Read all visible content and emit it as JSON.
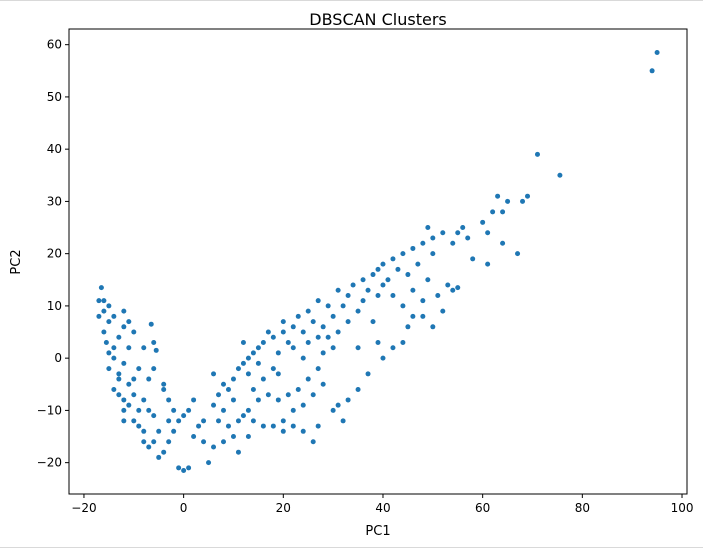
{
  "chart_data": {
    "type": "scatter",
    "title": "DBSCAN Clusters",
    "xlabel": "PC1",
    "ylabel": "PC2",
    "xlim": [
      -23,
      101
    ],
    "ylim": [
      -26,
      63
    ],
    "xticks": [
      -20,
      0,
      20,
      40,
      60,
      80,
      100
    ],
    "yticks": [
      -20,
      -10,
      0,
      10,
      20,
      30,
      40,
      50,
      60
    ],
    "marker_color": "#1f77b4",
    "grid": false,
    "legend": "none",
    "points": [
      [
        -17,
        11
      ],
      [
        -16.5,
        13.5
      ],
      [
        -17,
        8
      ],
      [
        -16,
        9
      ],
      [
        -15,
        7
      ],
      [
        -16,
        5
      ],
      [
        -15.5,
        3
      ],
      [
        -15,
        1
      ],
      [
        -14,
        0
      ],
      [
        -15,
        -2
      ],
      [
        -13,
        -4
      ],
      [
        -14,
        -6
      ],
      [
        -12,
        -8
      ],
      [
        -11,
        -9
      ],
      [
        -12,
        -10
      ],
      [
        -10,
        -12
      ],
      [
        -9,
        -13
      ],
      [
        -8,
        -14
      ],
      [
        -11,
        -5
      ],
      [
        -13,
        -3
      ],
      [
        -12,
        -1
      ],
      [
        -14,
        2
      ],
      [
        -13,
        4
      ],
      [
        -12,
        6
      ],
      [
        -14,
        8
      ],
      [
        -15,
        10
      ],
      [
        -16,
        11
      ],
      [
        -12,
        9
      ],
      [
        -13,
        -7
      ],
      [
        -10,
        -7
      ],
      [
        -8,
        -8
      ],
      [
        -7,
        -10
      ],
      [
        -6,
        -11
      ],
      [
        -9,
        -10
      ],
      [
        -5,
        -14
      ],
      [
        -6,
        -16
      ],
      [
        -7,
        -17
      ],
      [
        -4,
        -18
      ],
      [
        -3,
        -16
      ],
      [
        -5,
        -19
      ],
      [
        -1,
        -21
      ],
      [
        0,
        -21.5
      ],
      [
        1,
        -21
      ],
      [
        -6.5,
        6.5
      ],
      [
        -6,
        3
      ],
      [
        -5.5,
        1.5
      ],
      [
        -4,
        -6
      ],
      [
        -3,
        -8
      ],
      [
        -2,
        -10
      ],
      [
        -7,
        -4
      ],
      [
        -10,
        -4
      ],
      [
        -11,
        2
      ],
      [
        -9,
        -2
      ],
      [
        -12,
        -12
      ],
      [
        -8,
        -16
      ],
      [
        -2,
        -14
      ],
      [
        -1,
        -12
      ],
      [
        0,
        -11
      ],
      [
        1,
        -10
      ],
      [
        2,
        -8
      ],
      [
        3,
        -13
      ],
      [
        2,
        -15
      ],
      [
        4,
        -16
      ],
      [
        5,
        -20
      ],
      [
        4,
        -12
      ],
      [
        6,
        -9
      ],
      [
        7,
        -7
      ],
      [
        8,
        -5
      ],
      [
        6,
        -3
      ],
      [
        9,
        -6
      ],
      [
        10,
        -4
      ],
      [
        10,
        -8
      ],
      [
        8,
        -10
      ],
      [
        7,
        -12
      ],
      [
        12,
        -11
      ],
      [
        11,
        -2
      ],
      [
        12,
        -1
      ],
      [
        13,
        0
      ],
      [
        14,
        1
      ],
      [
        12,
        3
      ],
      [
        13,
        -3
      ],
      [
        15,
        -1
      ],
      [
        15,
        2
      ],
      [
        16,
        3
      ],
      [
        17,
        5
      ],
      [
        16,
        -4
      ],
      [
        14,
        -6
      ],
      [
        18,
        -2
      ],
      [
        18,
        4
      ],
      [
        19,
        1
      ],
      [
        19,
        -3
      ],
      [
        20,
        5
      ],
      [
        21,
        3
      ],
      [
        22,
        6
      ],
      [
        20,
        7
      ],
      [
        22,
        2
      ],
      [
        23,
        8
      ],
      [
        24,
        5
      ],
      [
        24,
        0
      ],
      [
        25,
        9
      ],
      [
        26,
        7
      ],
      [
        25,
        3
      ],
      [
        27,
        11
      ],
      [
        27,
        4
      ],
      [
        28,
        6
      ],
      [
        29,
        10
      ],
      [
        30,
        8
      ],
      [
        29,
        4
      ],
      [
        30,
        2
      ],
      [
        28,
        -5
      ],
      [
        26,
        -7
      ],
      [
        24,
        -9
      ],
      [
        22,
        -10
      ],
      [
        20,
        -12
      ],
      [
        18,
        -13
      ],
      [
        16,
        -13
      ],
      [
        14,
        -12
      ],
      [
        10,
        -15
      ],
      [
        8,
        -16
      ],
      [
        6,
        -17
      ],
      [
        9,
        -13
      ],
      [
        11,
        -12
      ],
      [
        13,
        -10
      ],
      [
        15,
        -8
      ],
      [
        17,
        -7
      ],
      [
        19,
        -8
      ],
      [
        21,
        -7
      ],
      [
        23,
        -6
      ],
      [
        25,
        -4
      ],
      [
        27,
        -2
      ],
      [
        28,
        1
      ],
      [
        31,
        13
      ],
      [
        31,
        5
      ],
      [
        32,
        10
      ],
      [
        33,
        12
      ],
      [
        33,
        7
      ],
      [
        34,
        14
      ],
      [
        35,
        9
      ],
      [
        35,
        2
      ],
      [
        36,
        15
      ],
      [
        36,
        11
      ],
      [
        37,
        13
      ],
      [
        38,
        16
      ],
      [
        38,
        7
      ],
      [
        39,
        17
      ],
      [
        39,
        12
      ],
      [
        40,
        18
      ],
      [
        40,
        14
      ],
      [
        41,
        15
      ],
      [
        42,
        19
      ],
      [
        42,
        12
      ],
      [
        43,
        17
      ],
      [
        44,
        20
      ],
      [
        44,
        10
      ],
      [
        45,
        16
      ],
      [
        46,
        21
      ],
      [
        46,
        13
      ],
      [
        47,
        18
      ],
      [
        48,
        22
      ],
      [
        48,
        11
      ],
      [
        49,
        25
      ],
      [
        49,
        15
      ],
      [
        50,
        20
      ],
      [
        50,
        23
      ],
      [
        51,
        12
      ],
      [
        52,
        24
      ],
      [
        53,
        14
      ],
      [
        54,
        22
      ],
      [
        55,
        24
      ],
      [
        56,
        25
      ],
      [
        57,
        23
      ],
      [
        60,
        26
      ],
      [
        61,
        24
      ],
      [
        62,
        28
      ],
      [
        63,
        31
      ],
      [
        64,
        28
      ],
      [
        65,
        30
      ],
      [
        67,
        20
      ],
      [
        68,
        30
      ],
      [
        69,
        31
      ],
      [
        71,
        39
      ],
      [
        75.5,
        35
      ],
      [
        94,
        55
      ],
      [
        95,
        58.5
      ],
      [
        64,
        22
      ],
      [
        61,
        18
      ],
      [
        58,
        19
      ],
      [
        55,
        13.5
      ],
      [
        54,
        13
      ],
      [
        52,
        9
      ],
      [
        50,
        6
      ],
      [
        48,
        8
      ],
      [
        46,
        8
      ],
      [
        45,
        6
      ],
      [
        44,
        3
      ],
      [
        42,
        2
      ],
      [
        40,
        0
      ],
      [
        39,
        3
      ],
      [
        37,
        -3
      ],
      [
        35,
        -6
      ],
      [
        33,
        -8
      ],
      [
        31,
        -9
      ],
      [
        30,
        -10
      ],
      [
        32,
        -12
      ],
      [
        27,
        -13
      ],
      [
        26,
        -16
      ],
      [
        24,
        -14
      ],
      [
        22,
        -13
      ],
      [
        20,
        -14
      ],
      [
        13,
        -15
      ],
      [
        11,
        -18
      ],
      [
        -3,
        -12
      ],
      [
        -4,
        -5
      ],
      [
        -8,
        2
      ],
      [
        -6,
        -2
      ],
      [
        -10,
        5
      ],
      [
        -11,
        7
      ]
    ]
  }
}
